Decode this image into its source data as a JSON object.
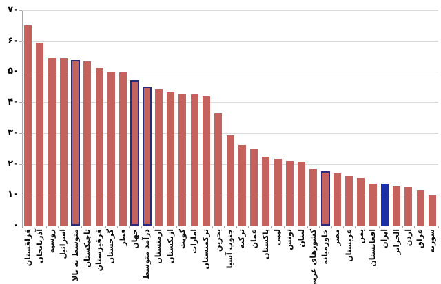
{
  "chart_data": {
    "type": "bar",
    "title": "",
    "xlabel": "",
    "ylabel": "",
    "ylim": [
      0,
      70
    ],
    "grid": true,
    "legend_position": "none",
    "ytick_values": [
      70,
      60,
      50,
      40,
      30,
      20,
      10,
      0
    ],
    "ytick_labels": [
      "۷۰",
      "۶۰",
      "۵۰",
      "۴۰",
      "۳۰",
      "۲۰",
      "۱۰",
      "۰"
    ],
    "categories": [
      "قزاقستان",
      "آذربایجان",
      "روسیه",
      "اسرائیل",
      "متوسط به بالا",
      "تاجیکستان",
      "قرقیزستان",
      "گرجستان",
      "قطر",
      "جهان",
      "درآمد متوسط",
      "ارمنستان",
      "ازبکستان",
      "کویت",
      "امارات",
      "ترکمنستان",
      "بحرین",
      "جنوب آسیا",
      "ترکیه",
      "عمان",
      "پاکستان",
      "لیبی",
      "تونس",
      "لبنان",
      "کشورهای عربی",
      "خاورمیانه",
      "مصر",
      "عربستان",
      "یمن",
      "افغانستان",
      "ایران",
      "الجزایر",
      "اردن",
      "عراق",
      "سوریه"
    ],
    "values": [
      65.1,
      59.6,
      54.5,
      54.3,
      54.0,
      53.5,
      51.3,
      50.0,
      49.9,
      47.2,
      45.2,
      44.3,
      43.3,
      43.0,
      42.7,
      42.1,
      36.5,
      29.4,
      26.2,
      25.1,
      22.3,
      21.6,
      21.1,
      20.9,
      18.3,
      17.7,
      17.1,
      16.2,
      15.5,
      13.6,
      13.6,
      12.7,
      12.5,
      11.4,
      9.9
    ],
    "bar_styles": [
      "normal",
      "normal",
      "normal",
      "normal",
      "outlined",
      "normal",
      "normal",
      "normal",
      "normal",
      "outlined",
      "outlined",
      "normal",
      "normal",
      "normal",
      "normal",
      "normal",
      "normal",
      "normal",
      "normal",
      "normal",
      "normal",
      "normal",
      "normal",
      "normal",
      "normal",
      "outlined",
      "normal",
      "normal",
      "normal",
      "normal",
      "solid",
      "normal",
      "normal",
      "normal",
      "normal"
    ],
    "colors": {
      "bar_fill": "#c4635d",
      "outlined_border": "#2d2a7c",
      "solid_fill": "#1b2fa6",
      "gridline": "#d9d9d9",
      "axis": "#a8a8a8",
      "label_text": "#000000"
    }
  }
}
